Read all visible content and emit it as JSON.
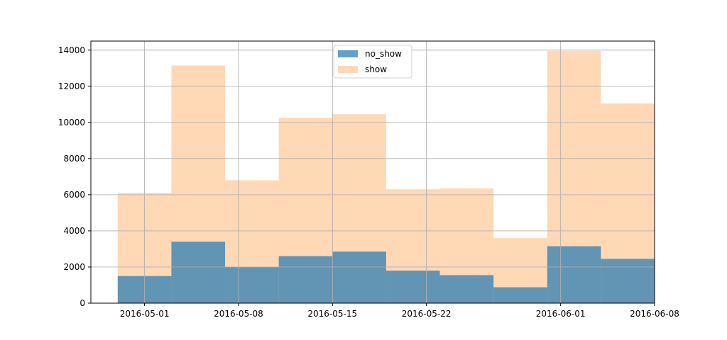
{
  "chart_data": {
    "type": "bar",
    "subtype": "overlapping-histogram",
    "title": "",
    "xlabel": "",
    "ylabel": "",
    "x_axis": {
      "min": "2016-04-27",
      "max": "2016-06-08",
      "ticks": [
        "2016-05-01",
        "2016-05-08",
        "2016-05-15",
        "2016-05-22",
        "2016-06-01",
        "2016-06-08"
      ]
    },
    "y_axis": {
      "min": 0,
      "max": 14500,
      "ticks": [
        0,
        2000,
        4000,
        6000,
        8000,
        10000,
        12000,
        14000
      ]
    },
    "grid": true,
    "legend": {
      "position": "top-center",
      "entries": [
        "no_show",
        "show"
      ]
    },
    "bins": [
      [
        "2016-04-29",
        "2016-05-03"
      ],
      [
        "2016-05-03",
        "2016-05-07"
      ],
      [
        "2016-05-07",
        "2016-05-11"
      ],
      [
        "2016-05-11",
        "2016-05-15"
      ],
      [
        "2016-05-15",
        "2016-05-19"
      ],
      [
        "2016-05-19",
        "2016-05-23"
      ],
      [
        "2016-05-23",
        "2016-05-27"
      ],
      [
        "2016-05-27",
        "2016-05-31"
      ],
      [
        "2016-05-31",
        "2016-06-04"
      ],
      [
        "2016-06-04",
        "2016-06-08"
      ]
    ],
    "series": [
      {
        "name": "show",
        "color": "#ff7f0e",
        "opacity": 0.3,
        "values": [
          6100,
          13150,
          6800,
          10250,
          10450,
          6300,
          6350,
          3600,
          13950,
          11050
        ]
      },
      {
        "name": "no_show",
        "color": "#1f77b4",
        "opacity": 0.7,
        "values": [
          1500,
          3400,
          2000,
          2600,
          2850,
          1800,
          1550,
          880,
          3150,
          2450
        ]
      }
    ]
  }
}
